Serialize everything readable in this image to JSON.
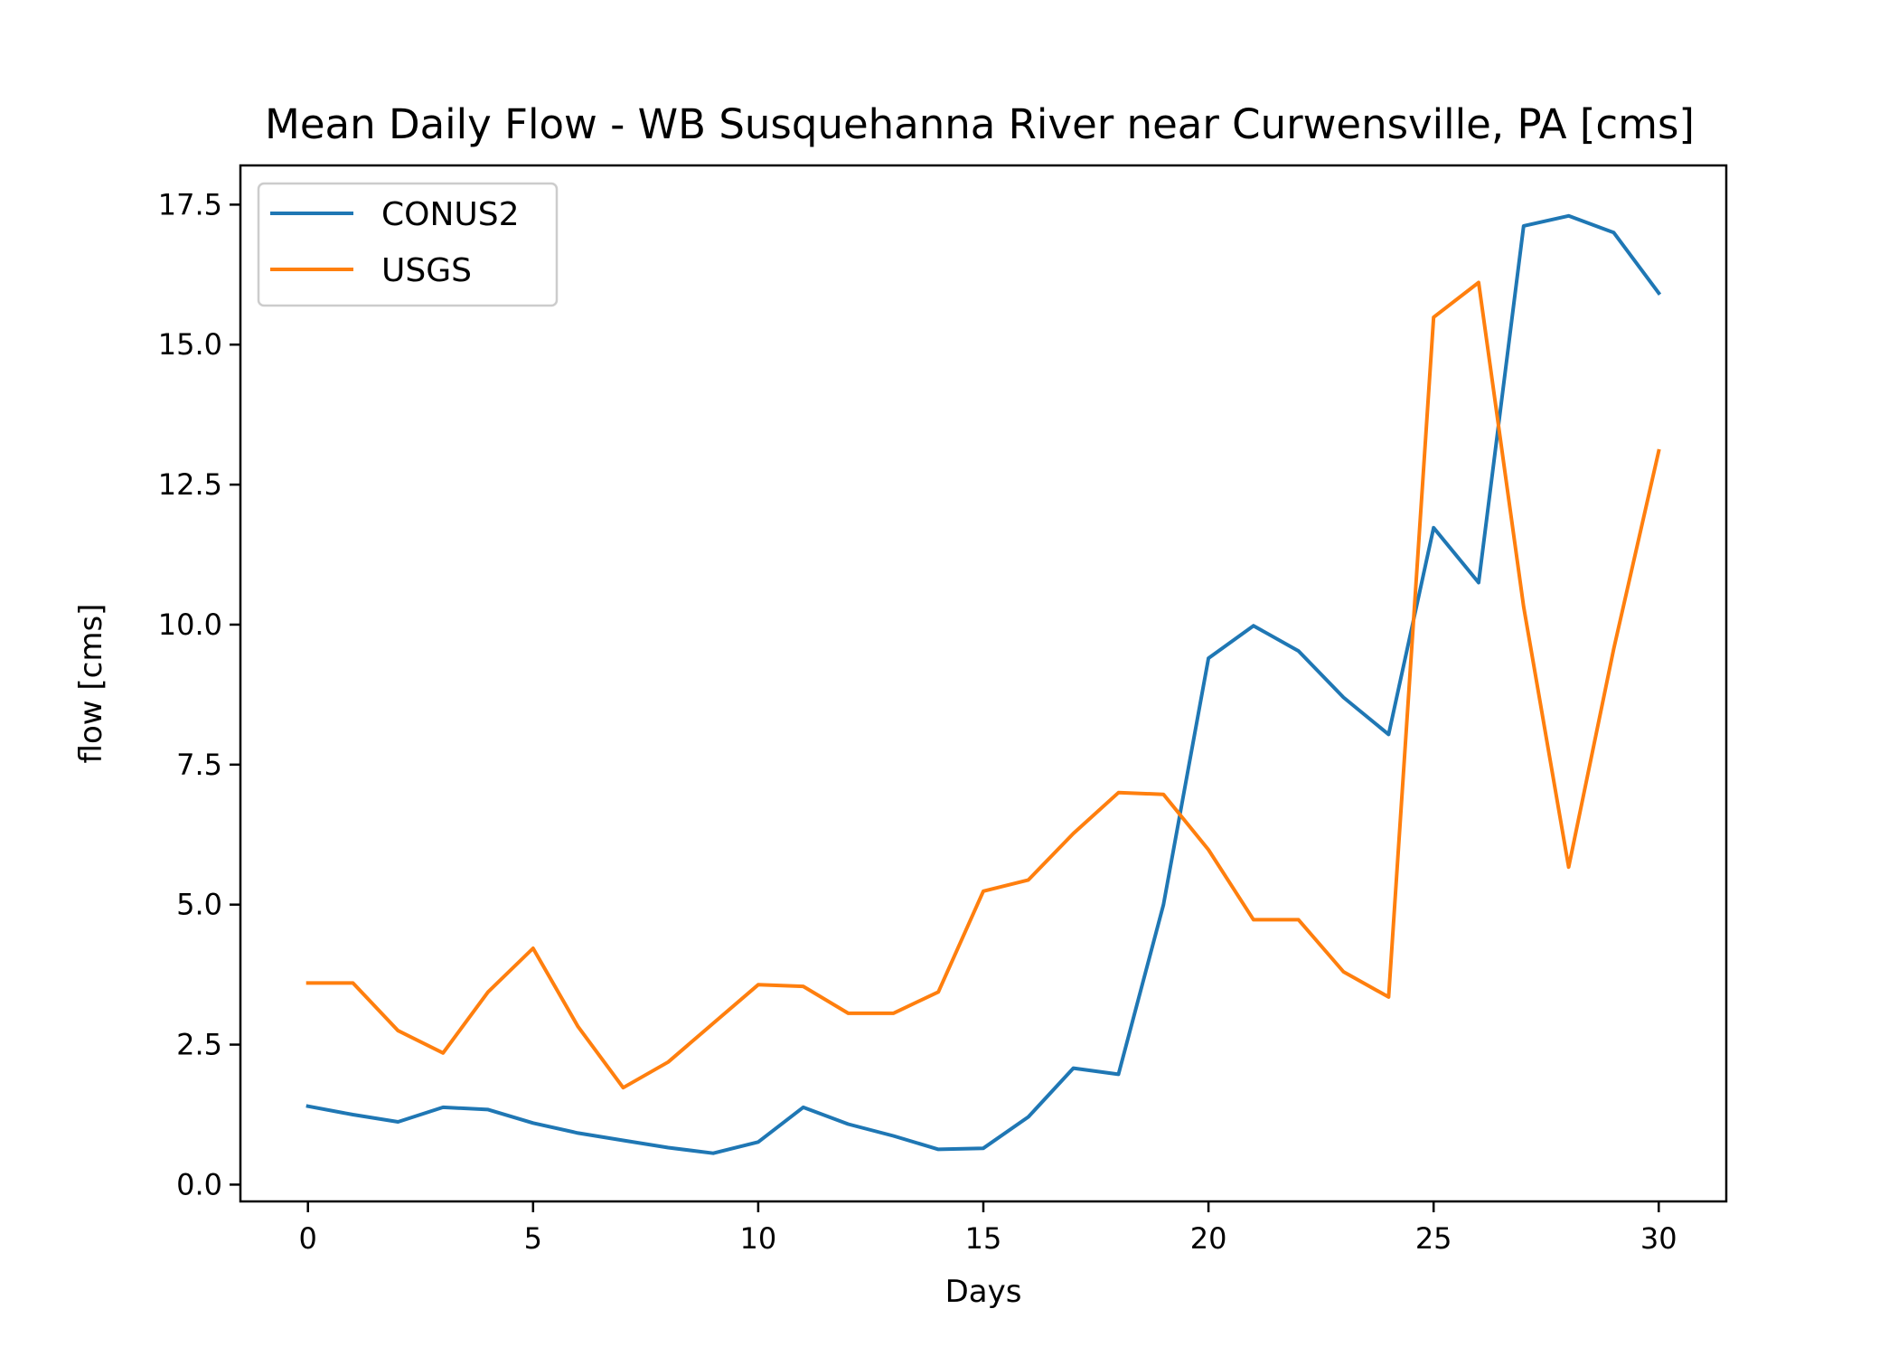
{
  "chart_data": {
    "type": "line",
    "title": "Mean Daily Flow - WB Susquehanna River near Curwensville, PA [cms]",
    "xlabel": "Days",
    "ylabel": "flow [cms]",
    "xlim": [
      -1.5,
      31.5
    ],
    "ylim": [
      -0.3,
      18.2
    ],
    "xticks": [
      0,
      5,
      10,
      15,
      20,
      25,
      30
    ],
    "xtick_labels": [
      "0",
      "5",
      "10",
      "15",
      "20",
      "25",
      "30"
    ],
    "yticks": [
      0,
      2.5,
      5,
      7.5,
      10,
      12.5,
      15,
      17.5
    ],
    "ytick_labels": [
      "0.0",
      "2.5",
      "5.0",
      "7.5",
      "10.0",
      "12.5",
      "15.0",
      "17.5"
    ],
    "grid": false,
    "legend_position": "top-left",
    "x": [
      0,
      1,
      2,
      3,
      4,
      5,
      6,
      7,
      8,
      9,
      10,
      11,
      12,
      13,
      14,
      15,
      16,
      17,
      18,
      19,
      20,
      21,
      22,
      23,
      24,
      25,
      26,
      27,
      28,
      29,
      30
    ],
    "series": [
      {
        "name": "CONUS2",
        "color": "#1f77b4",
        "values": [
          1.4,
          1.25,
          1.12,
          1.38,
          1.34,
          1.1,
          0.92,
          0.79,
          0.66,
          0.56,
          0.76,
          1.38,
          1.08,
          0.87,
          0.63,
          0.65,
          1.21,
          2.08,
          1.97,
          5.0,
          9.4,
          9.98,
          9.53,
          8.7,
          8.04,
          11.73,
          10.75,
          17.12,
          17.3,
          17.0,
          15.92
        ]
      },
      {
        "name": "USGS",
        "color": "#ff7f0e",
        "values": [
          3.6,
          3.6,
          2.75,
          2.35,
          3.44,
          4.22,
          2.82,
          1.73,
          2.19,
          2.88,
          3.57,
          3.54,
          3.06,
          3.06,
          3.44,
          5.24,
          5.44,
          6.27,
          7.0,
          6.97,
          5.98,
          4.73,
          4.73,
          3.8,
          3.35,
          15.49,
          16.11,
          10.32,
          5.67,
          9.57,
          13.1
        ]
      }
    ]
  }
}
